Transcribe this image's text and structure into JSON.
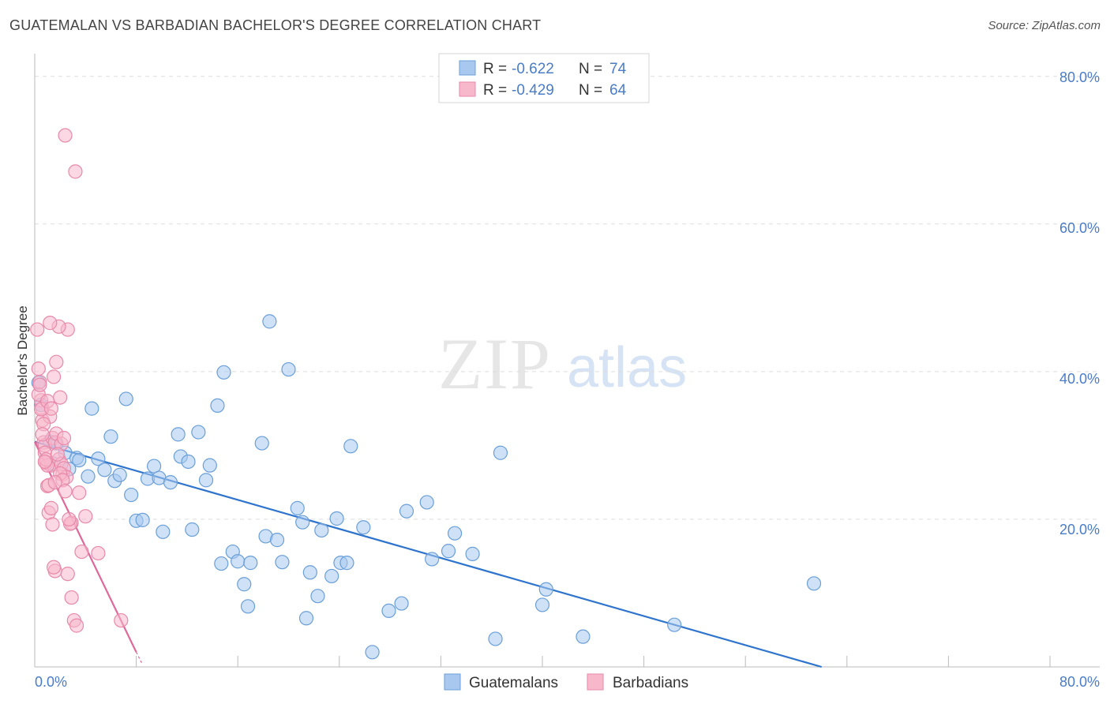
{
  "header": {
    "title": "GUATEMALAN VS BARBADIAN BACHELOR'S DEGREE CORRELATION CHART",
    "source": "Source: ZipAtlas.com"
  },
  "watermark": {
    "zip": "ZIP",
    "atlas": "atlas"
  },
  "colors": {
    "blue_fill": "#a8c8f0",
    "blue_stroke": "#6a9fd8",
    "blue_line": "#2f74cc",
    "pink_fill": "#f7b8cc",
    "pink_stroke": "#e889a9",
    "pink_line": "#e0679a",
    "accent_text": "#4a7cc7",
    "grid": "#dddddd"
  },
  "legend": {
    "rows": [
      {
        "r_label": "R =",
        "r_value": "-0.622",
        "n_label": "N =",
        "n_value": "74",
        "series": "blue"
      },
      {
        "r_label": "R =",
        "r_value": "-0.429",
        "n_label": "N =",
        "n_value": "64",
        "series": "pink"
      }
    ]
  },
  "chart_data": {
    "type": "scatter",
    "title": "GUATEMALAN VS BARBADIAN BACHELOR'S DEGREE CORRELATION CHART",
    "xlabel": "",
    "ylabel": "Bachelor's Degree",
    "xlim": [
      0,
      80
    ],
    "ylim": [
      0,
      82
    ],
    "x_tick_labels": [
      "0.0%",
      "80.0%"
    ],
    "y_ticks": [
      20,
      40,
      60,
      80
    ],
    "y_tick_labels": [
      "20.0%",
      "40.0%",
      "60.0%",
      "80.0%"
    ],
    "grid": true,
    "legend_position": "bottom",
    "series": [
      {
        "name": "Guatemalans",
        "color": "blue",
        "trend": {
          "x": [
            0.0,
            62.0
          ],
          "y": [
            30.5,
            0.0
          ]
        },
        "points": [
          [
            0.3,
            38.5
          ],
          [
            0.5,
            35.5
          ],
          [
            1.2,
            30.5
          ],
          [
            1.5,
            27.5
          ],
          [
            2.4,
            29.0
          ],
          [
            2.7,
            26.8
          ],
          [
            3.3,
            28.3
          ],
          [
            4.2,
            25.8
          ],
          [
            4.5,
            35.0
          ],
          [
            5.0,
            28.2
          ],
          [
            5.5,
            26.7
          ],
          [
            6.0,
            31.2
          ],
          [
            6.3,
            25.2
          ],
          [
            6.7,
            26.0
          ],
          [
            7.2,
            36.3
          ],
          [
            7.6,
            23.3
          ],
          [
            8.0,
            19.8
          ],
          [
            8.5,
            19.9
          ],
          [
            8.9,
            25.5
          ],
          [
            9.4,
            27.2
          ],
          [
            9.8,
            25.6
          ],
          [
            10.1,
            18.3
          ],
          [
            10.7,
            25.0
          ],
          [
            11.3,
            31.5
          ],
          [
            11.5,
            28.5
          ],
          [
            12.1,
            27.8
          ],
          [
            12.4,
            18.6
          ],
          [
            12.9,
            31.8
          ],
          [
            13.5,
            25.3
          ],
          [
            13.8,
            27.3
          ],
          [
            14.4,
            35.4
          ],
          [
            14.7,
            14.0
          ],
          [
            14.9,
            39.9
          ],
          [
            15.6,
            15.6
          ],
          [
            16.0,
            14.3
          ],
          [
            16.5,
            11.2
          ],
          [
            16.8,
            8.2
          ],
          [
            17.0,
            14.1
          ],
          [
            17.9,
            30.3
          ],
          [
            18.2,
            17.7
          ],
          [
            18.5,
            46.8
          ],
          [
            19.1,
            17.2
          ],
          [
            19.5,
            14.2
          ],
          [
            20.0,
            40.3
          ],
          [
            20.7,
            21.5
          ],
          [
            21.1,
            19.6
          ],
          [
            21.4,
            6.6
          ],
          [
            21.7,
            12.8
          ],
          [
            22.3,
            9.6
          ],
          [
            22.6,
            18.5
          ],
          [
            23.4,
            12.3
          ],
          [
            23.8,
            20.1
          ],
          [
            24.1,
            14.1
          ],
          [
            24.6,
            14.1
          ],
          [
            24.9,
            29.9
          ],
          [
            25.9,
            18.9
          ],
          [
            26.6,
            2.0
          ],
          [
            27.9,
            7.6
          ],
          [
            28.9,
            8.6
          ],
          [
            29.3,
            21.1
          ],
          [
            30.9,
            22.3
          ],
          [
            31.3,
            14.6
          ],
          [
            32.6,
            15.7
          ],
          [
            33.1,
            18.1
          ],
          [
            34.5,
            15.3
          ],
          [
            36.3,
            3.8
          ],
          [
            36.7,
            29.0
          ],
          [
            40.0,
            8.4
          ],
          [
            40.3,
            10.5
          ],
          [
            43.2,
            4.1
          ],
          [
            50.4,
            5.7
          ],
          [
            61.4,
            11.3
          ],
          [
            1.7,
            30.3
          ],
          [
            3.5,
            28.0
          ]
        ]
      },
      {
        "name": "Barbadians",
        "color": "pink",
        "trend": {
          "x": [
            0.0,
            8.0
          ],
          "y": [
            30.5,
            2.0
          ]
        },
        "trend_dashed": {
          "x": [
            8.0,
            8.5
          ],
          "y": [
            2.0,
            0.3
          ]
        },
        "points": [
          [
            0.2,
            45.7
          ],
          [
            0.3,
            40.4
          ],
          [
            0.4,
            38.6
          ],
          [
            0.5,
            36.1
          ],
          [
            0.6,
            33.4
          ],
          [
            0.7,
            30.4
          ],
          [
            0.8,
            30.0
          ],
          [
            0.9,
            27.6
          ],
          [
            1.0,
            24.5
          ],
          [
            1.1,
            20.9
          ],
          [
            1.2,
            33.9
          ],
          [
            1.3,
            27.3
          ],
          [
            1.4,
            31.0
          ],
          [
            1.6,
            30.4
          ],
          [
            1.7,
            31.6
          ],
          [
            1.9,
            28.1
          ],
          [
            2.1,
            30.2
          ],
          [
            2.2,
            26.1
          ],
          [
            2.4,
            72.0
          ],
          [
            2.6,
            45.7
          ],
          [
            2.9,
            19.5
          ],
          [
            3.2,
            67.1
          ],
          [
            3.5,
            23.6
          ],
          [
            3.7,
            15.6
          ],
          [
            4.0,
            20.4
          ],
          [
            5.0,
            15.4
          ],
          [
            6.8,
            6.3
          ],
          [
            0.3,
            36.9
          ],
          [
            0.6,
            35.0
          ],
          [
            0.8,
            29.0
          ],
          [
            1.0,
            27.3
          ],
          [
            1.1,
            24.6
          ],
          [
            1.3,
            21.5
          ],
          [
            1.4,
            19.3
          ],
          [
            1.6,
            13.0
          ],
          [
            1.7,
            41.3
          ],
          [
            1.9,
            46.1
          ],
          [
            2.0,
            36.5
          ],
          [
            2.1,
            27.5
          ],
          [
            2.3,
            26.9
          ],
          [
            2.5,
            25.7
          ],
          [
            2.6,
            12.6
          ],
          [
            2.8,
            19.4
          ],
          [
            2.9,
            9.4
          ],
          [
            3.1,
            6.3
          ],
          [
            3.3,
            5.6
          ],
          [
            0.4,
            38.2
          ],
          [
            0.5,
            34.9
          ],
          [
            0.7,
            32.9
          ],
          [
            0.9,
            28.1
          ],
          [
            1.2,
            46.6
          ],
          [
            1.5,
            39.3
          ],
          [
            1.8,
            28.8
          ],
          [
            2.0,
            26.2
          ],
          [
            2.2,
            25.3
          ],
          [
            2.4,
            23.8
          ],
          [
            2.7,
            20.0
          ],
          [
            1.5,
            13.5
          ],
          [
            1.0,
            36.0
          ],
          [
            1.3,
            35.0
          ],
          [
            0.8,
            27.8
          ],
          [
            1.6,
            25.0
          ],
          [
            2.3,
            31.0
          ],
          [
            0.6,
            31.5
          ]
        ]
      }
    ]
  }
}
